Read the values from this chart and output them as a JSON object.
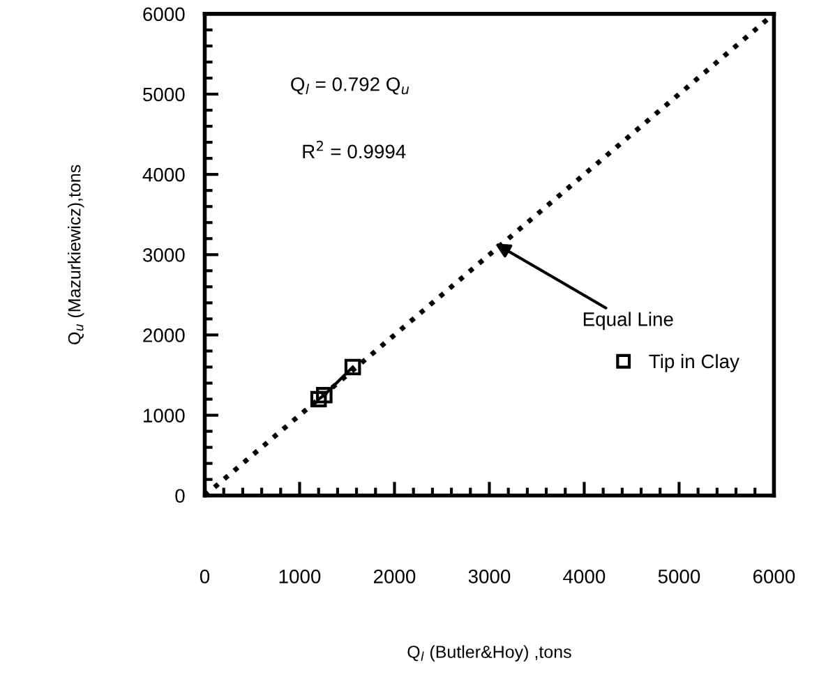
{
  "chart_data": {
    "type": "line",
    "xlabel": "Q$_{l}$ (Butler&Hoy) ,tons",
    "ylabel": "Q$_{u}$ (Mazurkiewicz),tons",
    "series": [
      {
        "x": [
          0,
          6000
        ],
        "values": [
          0,
          6000
        ],
        "color": "#000000",
        "line_style": "dotted",
        "marker": "none"
      },
      {
        "name": "Tip in Clay",
        "x": [
          1200,
          1260,
          1560
        ],
        "values": [
          1200,
          1250,
          1600
        ],
        "color": "#000000",
        "line_style": "solid",
        "marker": "square"
      }
    ],
    "annotations": [
      "Q$_{l}$ = 0.792 Q$_{u}$",
      "R$^{2}$ = 0.9994",
      {
        "text": "Equal Line",
        "x": 3060,
        "y": 3140
      }
    ],
    "xlim": [
      0,
      6000
    ],
    "ylim": [
      0,
      6000
    ],
    "xticks": [
      0,
      1000,
      2000,
      3000,
      4000,
      5000,
      6000
    ],
    "yticks": [
      0,
      1000,
      2000,
      3000,
      4000,
      5000,
      6000
    ],
    "legend": "bottom right",
    "grid": false
  }
}
